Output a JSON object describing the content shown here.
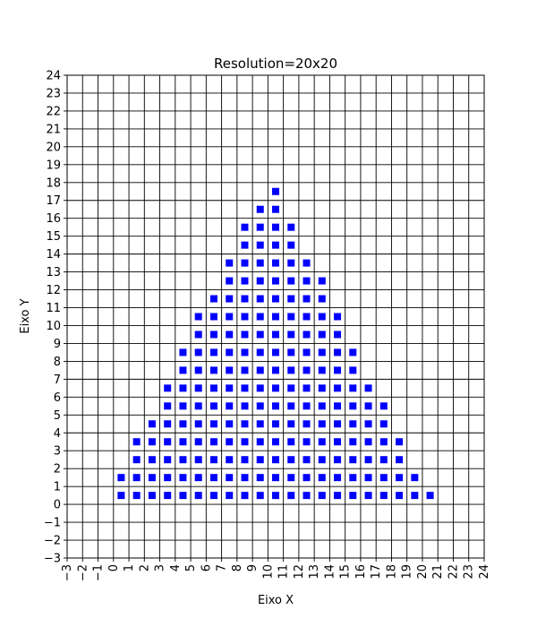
{
  "chart_data": {
    "type": "scatter",
    "title": "Resolution=20x20",
    "xlabel": "Eixo X",
    "ylabel": "Eixo Y",
    "xlim": [
      -3,
      24
    ],
    "ylim": [
      -3,
      24
    ],
    "grid": true,
    "marker": "square",
    "marker_color": "#0000ff",
    "xticks": [
      "−3",
      "−2",
      "−1",
      "0",
      "1",
      "2",
      "3",
      "4",
      "5",
      "6",
      "7",
      "8",
      "9",
      "10",
      "11",
      "12",
      "13",
      "14",
      "15",
      "16",
      "17",
      "18",
      "19",
      "20",
      "21",
      "22",
      "23",
      "24"
    ],
    "yticks": [
      "−3",
      "−2",
      "−1",
      "0",
      "1",
      "2",
      "3",
      "4",
      "5",
      "6",
      "7",
      "8",
      "9",
      "10",
      "11",
      "12",
      "13",
      "14",
      "15",
      "16",
      "17",
      "18",
      "19",
      "20",
      "21",
      "22",
      "23",
      "24"
    ],
    "rows": [
      {
        "y": 0.5,
        "x": [
          0.5,
          1.5,
          2.5,
          3.5,
          4.5,
          5.5,
          6.5,
          7.5,
          8.5,
          9.5,
          10.5,
          11.5,
          12.5,
          13.5,
          14.5,
          15.5,
          16.5,
          17.5,
          18.5,
          19.5,
          20.5
        ]
      },
      {
        "y": 1.5,
        "x": [
          0.5,
          1.5,
          2.5,
          3.5,
          4.5,
          5.5,
          6.5,
          7.5,
          8.5,
          9.5,
          10.5,
          11.5,
          12.5,
          13.5,
          14.5,
          15.5,
          16.5,
          17.5,
          18.5,
          19.5
        ]
      },
      {
        "y": 2.5,
        "x": [
          1.5,
          2.5,
          3.5,
          4.5,
          5.5,
          6.5,
          7.5,
          8.5,
          9.5,
          10.5,
          11.5,
          12.5,
          13.5,
          14.5,
          15.5,
          16.5,
          17.5,
          18.5
        ]
      },
      {
        "y": 3.5,
        "x": [
          1.5,
          2.5,
          3.5,
          4.5,
          5.5,
          6.5,
          7.5,
          8.5,
          9.5,
          10.5,
          11.5,
          12.5,
          13.5,
          14.5,
          15.5,
          16.5,
          17.5,
          18.5
        ]
      },
      {
        "y": 4.5,
        "x": [
          2.5,
          3.5,
          4.5,
          5.5,
          6.5,
          7.5,
          8.5,
          9.5,
          10.5,
          11.5,
          12.5,
          13.5,
          14.5,
          15.5,
          16.5,
          17.5
        ]
      },
      {
        "y": 5.5,
        "x": [
          3.5,
          4.5,
          5.5,
          6.5,
          7.5,
          8.5,
          9.5,
          10.5,
          11.5,
          12.5,
          13.5,
          14.5,
          15.5,
          16.5,
          17.5
        ]
      },
      {
        "y": 6.5,
        "x": [
          3.5,
          4.5,
          5.5,
          6.5,
          7.5,
          8.5,
          9.5,
          10.5,
          11.5,
          12.5,
          13.5,
          14.5,
          15.5,
          16.5
        ]
      },
      {
        "y": 7.5,
        "x": [
          4.5,
          5.5,
          6.5,
          7.5,
          8.5,
          9.5,
          10.5,
          11.5,
          12.5,
          13.5,
          14.5,
          15.5
        ]
      },
      {
        "y": 8.5,
        "x": [
          4.5,
          5.5,
          6.5,
          7.5,
          8.5,
          9.5,
          10.5,
          11.5,
          12.5,
          13.5,
          14.5,
          15.5
        ]
      },
      {
        "y": 9.5,
        "x": [
          5.5,
          6.5,
          7.5,
          8.5,
          9.5,
          10.5,
          11.5,
          12.5,
          13.5,
          14.5
        ]
      },
      {
        "y": 10.5,
        "x": [
          5.5,
          6.5,
          7.5,
          8.5,
          9.5,
          10.5,
          11.5,
          12.5,
          13.5,
          14.5
        ]
      },
      {
        "y": 11.5,
        "x": [
          6.5,
          7.5,
          8.5,
          9.5,
          10.5,
          11.5,
          12.5,
          13.5
        ]
      },
      {
        "y": 12.5,
        "x": [
          7.5,
          8.5,
          9.5,
          10.5,
          11.5,
          12.5,
          13.5
        ]
      },
      {
        "y": 13.5,
        "x": [
          7.5,
          8.5,
          9.5,
          10.5,
          11.5,
          12.5
        ]
      },
      {
        "y": 14.5,
        "x": [
          8.5,
          9.5,
          10.5,
          11.5
        ]
      },
      {
        "y": 15.5,
        "x": [
          8.5,
          9.5,
          10.5,
          11.5
        ]
      },
      {
        "y": 16.5,
        "x": [
          9.5,
          10.5
        ]
      },
      {
        "y": 17.5,
        "x": [
          10.5
        ]
      }
    ]
  }
}
